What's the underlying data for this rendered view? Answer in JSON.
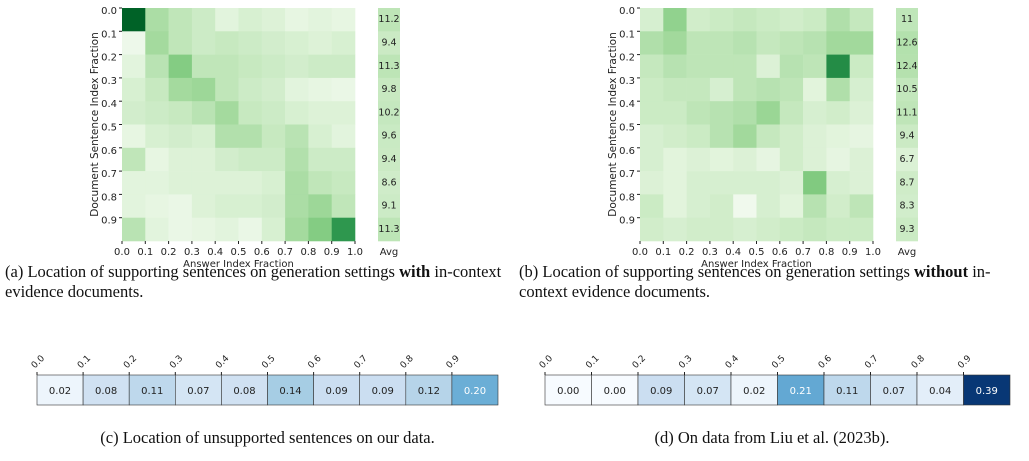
{
  "chart_data": [
    {
      "type": "heatmap",
      "colormap": "Greens",
      "zlim": [
        0,
        4.4
      ],
      "caption": [
        "(a) Location of supporting sentences on generation settings ",
        "with",
        " in-context evidence documents."
      ],
      "xlabel": "Answer Index Fraction",
      "ylabel": "Document Sentence Index Fraction",
      "xlim": [
        0,
        1
      ],
      "ylim": [
        0,
        1
      ],
      "xticks": [
        {
          "value": 0,
          "label": "0.0"
        },
        0.1,
        0.2,
        0.3,
        0.4,
        0.5,
        0.6,
        0.7,
        0.8,
        0.9,
        {
          "value": 1,
          "label": "1.0"
        }
      ],
      "yticks": [
        {
          "value": 0,
          "label": "0.0"
        },
        0.1,
        0.2,
        0.3,
        0.4,
        0.5,
        0.6,
        0.7,
        0.8,
        0.9
      ],
      "values": [
        [
          4.0,
          1.5,
          1.2,
          1.0,
          0.6,
          0.8,
          0.7,
          0.5,
          0.6,
          0.5
        ],
        [
          0.3,
          1.6,
          1.2,
          1.0,
          1.1,
          1.0,
          0.9,
          0.8,
          0.7,
          0.8
        ],
        [
          0.6,
          1.3,
          2.0,
          1.2,
          1.2,
          1.1,
          1.0,
          0.9,
          1.0,
          1.0
        ],
        [
          0.8,
          1.1,
          1.6,
          1.7,
          1.2,
          1.0,
          0.9,
          0.6,
          0.5,
          0.4
        ],
        [
          0.9,
          1.0,
          1.1,
          1.3,
          1.6,
          1.1,
          1.0,
          0.8,
          0.7,
          0.7
        ],
        [
          0.5,
          0.8,
          0.9,
          0.8,
          1.4,
          1.4,
          1.1,
          1.3,
          0.8,
          0.6
        ],
        [
          1.2,
          0.5,
          0.7,
          0.7,
          0.9,
          1.0,
          1.0,
          1.4,
          1.0,
          1.0
        ],
        [
          0.6,
          0.6,
          0.7,
          0.7,
          0.7,
          0.7,
          0.8,
          1.5,
          1.2,
          1.1
        ],
        [
          0.6,
          0.5,
          0.4,
          0.7,
          0.8,
          0.8,
          0.9,
          1.5,
          1.7,
          1.2
        ],
        [
          1.3,
          0.6,
          0.4,
          0.5,
          0.6,
          0.4,
          0.8,
          1.6,
          2.0,
          3.1
        ]
      ],
      "avg": {
        "label": "Avg",
        "zlim": [
          0,
          40
        ],
        "values": [
          11.2,
          9.4,
          11.3,
          9.8,
          10.2,
          9.6,
          9.4,
          8.6,
          9.1,
          11.3
        ]
      }
    },
    {
      "type": "heatmap",
      "colormap": "Greens",
      "zlim": [
        0,
        4.3
      ],
      "caption": [
        "(b) Location of supporting sentences on generation settings ",
        "without",
        " in-context evidence documents."
      ],
      "xlabel": "Answer Index Fraction",
      "ylabel": "Document Sentence Index Fraction",
      "xlim": [
        0,
        1
      ],
      "ylim": [
        0,
        1
      ],
      "xticks": [
        {
          "value": 0,
          "label": "0.0"
        },
        0.1,
        0.2,
        0.3,
        0.4,
        0.5,
        0.6,
        0.7,
        0.8,
        0.9,
        {
          "value": 1,
          "label": "1.0"
        }
      ],
      "yticks": [
        {
          "value": 0,
          "label": "0.0"
        },
        0.1,
        0.2,
        0.3,
        0.4,
        0.5,
        0.6,
        0.7,
        0.8,
        0.9
      ],
      "values": [
        [
          0.8,
          1.8,
          0.9,
          1.0,
          1.1,
          1.0,
          0.9,
          1.0,
          1.4,
          1.1
        ],
        [
          1.4,
          1.6,
          1.2,
          1.2,
          1.3,
          1.1,
          1.2,
          1.3,
          1.6,
          1.6
        ],
        [
          1.1,
          1.3,
          1.2,
          1.2,
          1.2,
          0.7,
          1.3,
          1.2,
          3.2,
          1.0
        ],
        [
          1.0,
          1.1,
          1.1,
          0.8,
          1.2,
          1.3,
          1.2,
          0.6,
          1.4,
          0.8
        ],
        [
          1.0,
          1.0,
          1.2,
          1.3,
          1.4,
          1.7,
          1.1,
          0.8,
          0.9,
          0.7
        ],
        [
          0.8,
          0.9,
          1.0,
          1.3,
          1.6,
          1.1,
          0.9,
          0.7,
          0.6,
          0.5
        ],
        [
          0.8,
          0.6,
          0.7,
          0.6,
          0.7,
          0.5,
          0.9,
          0.7,
          0.5,
          0.7
        ],
        [
          0.7,
          0.6,
          0.8,
          0.8,
          0.8,
          0.8,
          0.7,
          2.0,
          0.8,
          0.7
        ],
        [
          1.0,
          0.6,
          0.8,
          0.9,
          0.2,
          0.8,
          0.6,
          1.3,
          0.9,
          1.2
        ],
        [
          0.9,
          0.8,
          0.9,
          0.9,
          0.8,
          0.9,
          1.0,
          1.1,
          1.0,
          1.0
        ]
      ],
      "avg": {
        "label": "Avg",
        "zlim": [
          0,
          40
        ],
        "values": [
          11.0,
          12.6,
          12.4,
          10.5,
          11.1,
          9.4,
          6.7,
          8.7,
          8.3,
          9.3
        ]
      }
    },
    {
      "type": "heatmap1d",
      "colormap": "Blues",
      "zlim": [
        0,
        0.4
      ],
      "caption": [
        "(c) Location of unsupported sentences on our data."
      ],
      "xlim": [
        0,
        1
      ],
      "xticks": [
        {
          "value": 0,
          "label": "0.0"
        },
        0.1,
        0.2,
        0.3,
        0.4,
        0.5,
        0.6,
        0.7,
        0.8,
        0.9
      ],
      "values": [
        0.02,
        0.08,
        0.11,
        0.07,
        0.08,
        0.14,
        0.09,
        0.09,
        0.12,
        0.2
      ],
      "value_labels": [
        "0.02",
        "0.08",
        "0.11",
        "0.07",
        "0.08",
        "0.14",
        "0.09",
        "0.09",
        "0.12",
        "0.20"
      ]
    },
    {
      "type": "heatmap1d",
      "colormap": "Blues",
      "zlim": [
        0,
        0.4
      ],
      "caption": [
        "(d) On data from  Liu et al. (2023b)."
      ],
      "xlim": [
        0,
        1
      ],
      "xticks": [
        {
          "value": 0,
          "label": "0.0"
        },
        0.1,
        0.2,
        0.3,
        0.4,
        0.5,
        0.6,
        0.7,
        0.8,
        0.9
      ],
      "values": [
        0.0,
        0.0,
        0.09,
        0.07,
        0.02,
        0.21,
        0.11,
        0.07,
        0.04,
        0.39
      ],
      "value_labels": [
        "0.00",
        "0.00",
        "0.09",
        "0.07",
        "0.02",
        "0.21",
        "0.11",
        "0.07",
        "0.04",
        "0.39"
      ]
    }
  ]
}
